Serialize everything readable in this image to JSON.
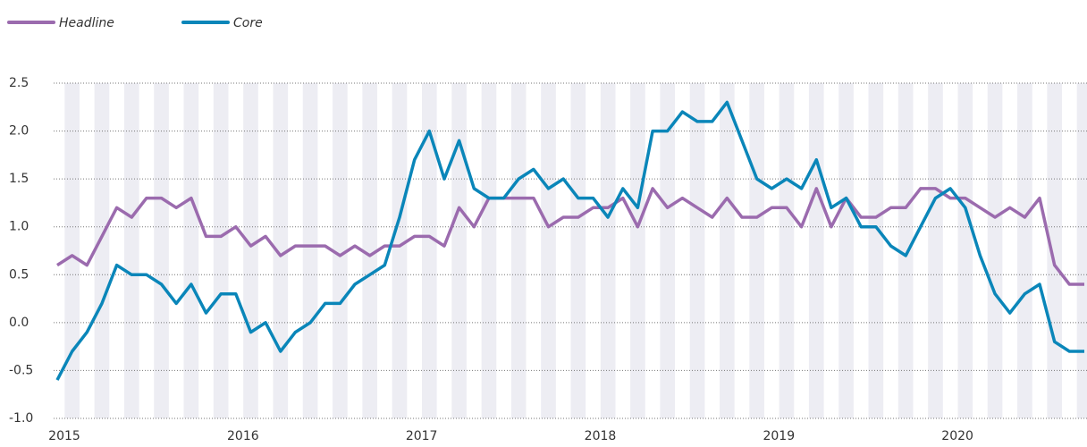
{
  "chart_data": {
    "type": "line",
    "x": [
      "2015",
      null,
      null,
      null,
      null,
      null,
      null,
      null,
      null,
      null,
      null,
      null,
      "2016",
      null,
      null,
      null,
      null,
      null,
      null,
      null,
      null,
      null,
      null,
      null,
      "2017",
      null,
      null,
      null,
      null,
      null,
      null,
      null,
      null,
      null,
      null,
      null,
      "2018",
      null,
      null,
      null,
      null,
      null,
      null,
      null,
      null,
      null,
      null,
      null,
      "2019",
      null,
      null,
      null,
      null,
      null,
      null,
      null,
      null,
      null,
      null,
      null,
      "2020",
      null,
      null,
      null,
      null,
      null,
      null,
      null,
      null,
      null
    ],
    "series": [
      {
        "name": "Headline",
        "color": "#9b6bae",
        "values": [
          0.6,
          0.7,
          0.6,
          0.9,
          1.2,
          1.1,
          1.3,
          1.3,
          1.2,
          1.3,
          0.9,
          0.9,
          1.0,
          0.8,
          0.9,
          0.7,
          0.8,
          0.8,
          0.8,
          0.7,
          0.8,
          0.7,
          0.8,
          0.8,
          0.9,
          0.9,
          0.8,
          1.2,
          1.0,
          1.3,
          1.3,
          1.3,
          1.3,
          1.0,
          1.1,
          1.1,
          1.2,
          1.2,
          1.3,
          1.0,
          1.4,
          1.2,
          1.3,
          1.2,
          1.1,
          1.3,
          1.1,
          1.1,
          1.2,
          1.2,
          1.0,
          1.4,
          1.0,
          1.3,
          1.1,
          1.1,
          1.2,
          1.2,
          1.4,
          1.4,
          1.3,
          1.3,
          1.2,
          1.1,
          1.2,
          1.1,
          1.3,
          0.6,
          0.4,
          0.4
        ]
      },
      {
        "name": "Core",
        "color": "#0a86b9",
        "values": [
          -0.6,
          -0.3,
          -0.1,
          0.2,
          0.6,
          0.5,
          0.5,
          0.4,
          0.2,
          0.4,
          0.1,
          0.3,
          0.3,
          -0.1,
          0.0,
          -0.3,
          -0.1,
          0.0,
          0.2,
          0.2,
          0.4,
          0.5,
          0.6,
          1.1,
          1.7,
          2.0,
          1.5,
          1.9,
          1.4,
          1.3,
          1.3,
          1.5,
          1.6,
          1.4,
          1.5,
          1.3,
          1.3,
          1.1,
          1.4,
          1.2,
          2.0,
          2.0,
          2.2,
          2.1,
          2.1,
          2.3,
          1.9,
          1.5,
          1.4,
          1.5,
          1.4,
          1.7,
          1.2,
          1.3,
          1.0,
          1.0,
          0.8,
          0.7,
          1.0,
          1.3,
          1.4,
          1.2,
          0.7,
          0.3,
          0.1,
          0.3,
          0.4,
          -0.2,
          -0.3,
          -0.3
        ]
      }
    ],
    "ylim": [
      -1.0,
      2.5
    ],
    "yticks": [
      {
        "value": -1.0,
        "label": "-1.0"
      },
      -0.5,
      {
        "value": 0.0,
        "label": "0.0"
      },
      0.5,
      {
        "value": 1.0,
        "label": "1.0"
      },
      1.5,
      {
        "value": 2.0,
        "label": "2.0"
      },
      2.5
    ],
    "grid": true
  }
}
